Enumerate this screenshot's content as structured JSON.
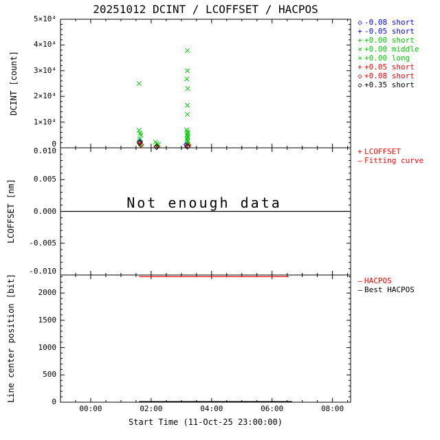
{
  "title": "20251012 DCINT / LCOFFSET / HACPOS",
  "xaxis": {
    "label": "Start Time (11-Oct-25 23:00:00)",
    "unit": "hours since 23:00",
    "range": [
      0,
      9.6
    ],
    "tick_positions": [
      1,
      3,
      5,
      7,
      9
    ],
    "tick_labels": [
      "00:00",
      "02:00",
      "04:00",
      "06:00",
      "08:00"
    ]
  },
  "colors": {
    "blue": "#0000ff",
    "green": "#00cc00",
    "red": "#ff0000",
    "black": "#000000",
    "background": "#ffffff"
  },
  "chart_data": [
    {
      "type": "scatter",
      "ylabel": "DCINT [count]",
      "ylim": [
        0,
        50000
      ],
      "ytick_values": [
        0,
        10000,
        20000,
        30000,
        40000,
        50000
      ],
      "ytick_labels": [
        "0",
        "1×10⁴",
        "2×10⁴",
        "3×10⁴",
        "4×10⁴",
        "5×10⁴"
      ],
      "legend": [
        {
          "symbol": "diamond",
          "color": "#0000ff",
          "label": "-0.08 short"
        },
        {
          "symbol": "plus",
          "color": "#0000ff",
          "label": "-0.05 short"
        },
        {
          "symbol": "plus",
          "color": "#00cc00",
          "label": "+0.00 short"
        },
        {
          "symbol": "x",
          "color": "#00cc00",
          "label": "+0.00 middle"
        },
        {
          "symbol": "x",
          "color": "#00cc00",
          "label": "+0.00 long"
        },
        {
          "symbol": "plus",
          "color": "#ff0000",
          "label": "+0.05 short"
        },
        {
          "symbol": "diamond",
          "color": "#ff0000",
          "label": "+0.08 short"
        },
        {
          "symbol": "diamond",
          "color": "#000000",
          "label": "+0.35 short"
        }
      ],
      "series": [
        {
          "name": "-0.08 short",
          "symbol": "diamond",
          "color": "#0000ff",
          "points": [
            [
              2.63,
              2500
            ],
            [
              4.17,
              1250
            ]
          ]
        },
        {
          "name": "-0.05 short",
          "symbol": "plus",
          "color": "#0000ff",
          "points": [
            [
              2.62,
              3050
            ],
            [
              4.16,
              1550
            ]
          ]
        },
        {
          "name": "+0.00 short",
          "symbol": "plus",
          "color": "#00cc00",
          "points": [
            [
              2.61,
              1500
            ],
            [
              2.64,
              1000
            ],
            [
              2.67,
              650
            ],
            [
              3.17,
              900
            ],
            [
              3.22,
              620
            ],
            [
              4.19,
              2100
            ],
            [
              4.23,
              1600
            ],
            [
              4.26,
              1150
            ]
          ]
        },
        {
          "name": "+0.00 middle",
          "symbol": "x",
          "color": "#00cc00",
          "points": [
            [
              2.6,
              6800
            ],
            [
              2.63,
              5700
            ],
            [
              2.66,
              5000
            ],
            [
              3.14,
              2200
            ],
            [
              3.19,
              1700
            ],
            [
              3.24,
              1300
            ],
            [
              4.18,
              7000
            ],
            [
              4.2,
              6200
            ],
            [
              4.22,
              5600
            ],
            [
              4.19,
              5000
            ],
            [
              4.21,
              4400
            ],
            [
              4.2,
              3800
            ],
            [
              4.19,
              3200
            ],
            [
              4.21,
              2700
            ]
          ]
        },
        {
          "name": "+0.00 long",
          "symbol": "x",
          "color": "#00cc00",
          "points": [
            [
              2.6,
              25000
            ],
            [
              2.62,
              3400
            ],
            [
              4.2,
              37800
            ],
            [
              4.2,
              30000
            ],
            [
              4.18,
              26800
            ],
            [
              4.21,
              23000
            ],
            [
              4.2,
              16500
            ],
            [
              4.2,
              13000
            ]
          ]
        },
        {
          "name": "+0.05 short",
          "symbol": "plus",
          "color": "#ff0000",
          "points": [
            [
              2.64,
              1750
            ],
            [
              3.2,
              520
            ],
            [
              4.2,
              1000
            ]
          ]
        },
        {
          "name": "+0.08 short",
          "symbol": "diamond",
          "color": "#ff0000",
          "points": [
            [
              2.66,
              1200
            ],
            [
              4.22,
              800
            ]
          ]
        },
        {
          "name": "+0.35 short",
          "symbol": "diamond",
          "color": "#000000",
          "points": [
            [
              2.62,
              2000
            ],
            [
              3.18,
              350
            ],
            [
              4.2,
              500
            ]
          ]
        }
      ]
    },
    {
      "type": "line",
      "ylabel": "LCOFFSET [nm]",
      "ylim": [
        -0.01,
        0.01
      ],
      "ytick_values": [
        -0.01,
        -0.005,
        0,
        0.005,
        0.01
      ],
      "ytick_labels": [
        "-0.010",
        "-0.005",
        "0.000",
        "0.005",
        "0.010"
      ],
      "annotation": "Not enough data",
      "legend": [
        {
          "symbol": "plus",
          "color": "#ff0000",
          "label": "LCOFFSET"
        },
        {
          "symbol": "dash",
          "color": "#ff0000",
          "label": "Fitting curve"
        }
      ],
      "series": [
        {
          "name": "zero line",
          "color": "#000000",
          "points": [
            [
              0,
              0
            ],
            [
              9.6,
              0
            ]
          ]
        }
      ]
    },
    {
      "type": "line",
      "ylabel": "Line center position [bit]",
      "ylim": [
        0,
        2330
      ],
      "ytick_values": [
        0,
        500,
        1000,
        1500,
        2000
      ],
      "ytick_labels": [
        "0",
        "500",
        "1000",
        "1500",
        "2000"
      ],
      "legend": [
        {
          "symbol": "dash",
          "color": "#ff0000",
          "label": "HACPOS"
        },
        {
          "symbol": "dash",
          "color": "#000000",
          "label": "Best HACPOS"
        }
      ],
      "series": [
        {
          "name": "HACPOS",
          "color": "#ff0000",
          "points": [
            [
              2.6,
              2300
            ],
            [
              7.55,
              2300
            ]
          ]
        },
        {
          "name": "Best HACPOS",
          "color": "#000000",
          "points": [
            [
              2.6,
              12
            ],
            [
              7.66,
              12
            ]
          ]
        }
      ]
    }
  ]
}
